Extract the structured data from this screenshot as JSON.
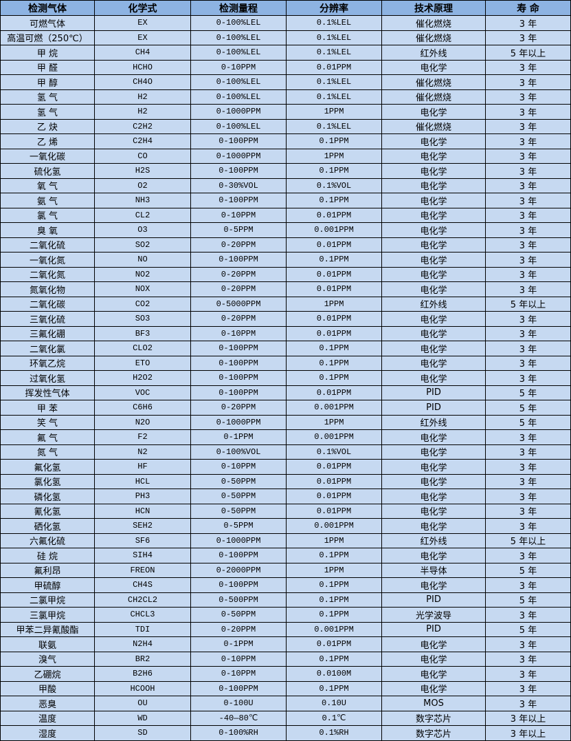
{
  "colors": {
    "header_bg": "#8DB3E2",
    "row_bg": "#C6D9F1",
    "border": "#000000"
  },
  "headers": [
    "检测气体",
    "化学式",
    "检测量程",
    "分辨率",
    "技术原理",
    "寿 命"
  ],
  "rows": [
    [
      "可燃气体",
      "EX",
      "0-100%LEL",
      "0.1%LEL",
      "催化燃烧",
      "3 年"
    ],
    [
      "高温可燃（250℃）",
      "EX",
      "0-100%LEL",
      "0.1%LEL",
      "催化燃烧",
      "3 年"
    ],
    [
      "甲 烷",
      "CH4",
      "0-100%LEL",
      "0.1%LEL",
      "红外线",
      "5 年以上"
    ],
    [
      "甲 醛",
      "HCHO",
      "0-10PPM",
      "0.01PPM",
      "电化学",
      "3 年"
    ],
    [
      "甲 醇",
      "CH4O",
      "0-100%LEL",
      "0.1%LEL",
      "催化燃烧",
      "3 年"
    ],
    [
      "氢 气",
      "H2",
      "0-100%LEL",
      "0.1%LEL",
      "催化燃烧",
      "3 年"
    ],
    [
      "氢 气",
      "H2",
      "0-1000PPM",
      "1PPM",
      "电化学",
      "3 年"
    ],
    [
      "乙 炔",
      "C2H2",
      "0-100%LEL",
      "0.1%LEL",
      "催化燃烧",
      "3 年"
    ],
    [
      "乙 烯",
      "C2H4",
      "0-100PPM",
      "0.1PPM",
      "电化学",
      "3 年"
    ],
    [
      "一氧化碳",
      "CO",
      "0-1000PPM",
      "1PPM",
      "电化学",
      "3 年"
    ],
    [
      "硫化氢",
      "H2S",
      "0-100PPM",
      "0.1PPM",
      "电化学",
      "3 年"
    ],
    [
      "氧 气",
      "O2",
      "0-30%VOL",
      "0.1%VOL",
      "电化学",
      "3 年"
    ],
    [
      "氨 气",
      "NH3",
      "0-100PPM",
      "0.1PPM",
      "电化学",
      "3 年"
    ],
    [
      "氯 气",
      "CL2",
      "0-10PPM",
      "0.01PPM",
      "电化学",
      "3 年"
    ],
    [
      "臭 氧",
      "O3",
      "0-5PPM",
      "0.001PPM",
      "电化学",
      "3 年"
    ],
    [
      "二氧化硫",
      "SO2",
      "0-20PPM",
      "0.01PPM",
      "电化学",
      "3 年"
    ],
    [
      "一氧化氮",
      "NO",
      "0-100PPM",
      "0.1PPM",
      "电化学",
      "3 年"
    ],
    [
      "二氧化氮",
      "NO2",
      "0-20PPM",
      "0.01PPM",
      "电化学",
      "3 年"
    ],
    [
      "氮氧化物",
      "NOX",
      "0-20PPM",
      "0.01PPM",
      "电化学",
      "3 年"
    ],
    [
      "二氧化碳",
      "CO2",
      "0-5000PPM",
      "1PPM",
      "红外线",
      "5 年以上"
    ],
    [
      "三氧化硫",
      "SO3",
      "0-20PPM",
      "0.01PPM",
      "电化学",
      "3 年"
    ],
    [
      "三氟化硼",
      "BF3",
      "0-10PPM",
      "0.01PPM",
      "电化学",
      "3 年"
    ],
    [
      "二氧化氯",
      "CLO2",
      "0-100PPM",
      "0.1PPM",
      "电化学",
      "3 年"
    ],
    [
      "环氧乙烷",
      "ETO",
      "0-100PPM",
      "0.1PPM",
      "电化学",
      "3 年"
    ],
    [
      "过氧化氢",
      "H2O2",
      "0-100PPM",
      "0.1PPM",
      "电化学",
      "3 年"
    ],
    [
      "挥发性气体",
      "VOC",
      "0-100PPM",
      "0.01PPM",
      "PID",
      "5 年"
    ],
    [
      "甲 苯",
      "C6H6",
      "0-20PPM",
      "0.001PPM",
      "PID",
      "5 年"
    ],
    [
      "笑 气",
      "N2O",
      "0-1000PPM",
      "1PPM",
      "红外线",
      "5 年"
    ],
    [
      "氟 气",
      "F2",
      "0-1PPM",
      "0.001PPM",
      "电化学",
      "3 年"
    ],
    [
      "氮 气",
      "N2",
      "0-100%VOL",
      "0.1%VOL",
      "电化学",
      "3 年"
    ],
    [
      "氟化氢",
      "HF",
      "0-10PPM",
      "0.01PPM",
      "电化学",
      "3 年"
    ],
    [
      "氯化氢",
      "HCL",
      "0-50PPM",
      "0.01PPM",
      "电化学",
      "3 年"
    ],
    [
      "磷化氢",
      "PH3",
      "0-50PPM",
      "0.01PPM",
      "电化学",
      "3 年"
    ],
    [
      "氰化氢",
      "HCN",
      "0-50PPM",
      "0.01PPM",
      "电化学",
      "3 年"
    ],
    [
      "硒化氢",
      "SEH2",
      "0-5PPM",
      "0.001PPM",
      "电化学",
      "3 年"
    ],
    [
      "六氟化硫",
      "SF6",
      "0-1000PPM",
      "1PPM",
      "红外线",
      "5 年以上"
    ],
    [
      "硅 烷",
      "SIH4",
      "0-100PPM",
      "0.1PPM",
      "电化学",
      "3 年"
    ],
    [
      "氟利昂",
      "FREON",
      "0-2000PPM",
      "1PPM",
      "半导体",
      "5 年"
    ],
    [
      "甲硫醇",
      "CH4S",
      "0-100PPM",
      "0.1PPM",
      "电化学",
      "3 年"
    ],
    [
      "二氯甲烷",
      "CH2CL2",
      "0-500PPM",
      "0.1PPM",
      "PID",
      "5 年"
    ],
    [
      "三氯甲烷",
      "CHCL3",
      "0-50PPM",
      "0.1PPM",
      "光学波导",
      "3 年"
    ],
    [
      "甲苯二异氰酸酯",
      "TDI",
      "0-20PPM",
      "0.001PPM",
      "PID",
      "5 年"
    ],
    [
      "联氨",
      "N2H4",
      "0-1PPM",
      "0.01PPM",
      "电化学",
      "3 年"
    ],
    [
      "溴气",
      "BR2",
      "0-10PPM",
      "0.1PPM",
      "电化学",
      "3 年"
    ],
    [
      "乙硼烷",
      "B2H6",
      "0-10PPM",
      "0.0100M",
      "电化学",
      "3 年"
    ],
    [
      "甲酸",
      "HCOOH",
      "0-100PPM",
      "0.1PPM",
      "电化学",
      "3 年"
    ],
    [
      "恶臭",
      "OU",
      "0-100U",
      "0.10U",
      "MOS",
      "3 年"
    ],
    [
      "温度",
      "WD",
      "-40—80℃",
      "0.1℃",
      "数字芯片",
      "3 年以上"
    ],
    [
      "湿度",
      "SD",
      "0-100%RH",
      "0.1%RH",
      "数字芯片",
      "3 年以上"
    ]
  ]
}
